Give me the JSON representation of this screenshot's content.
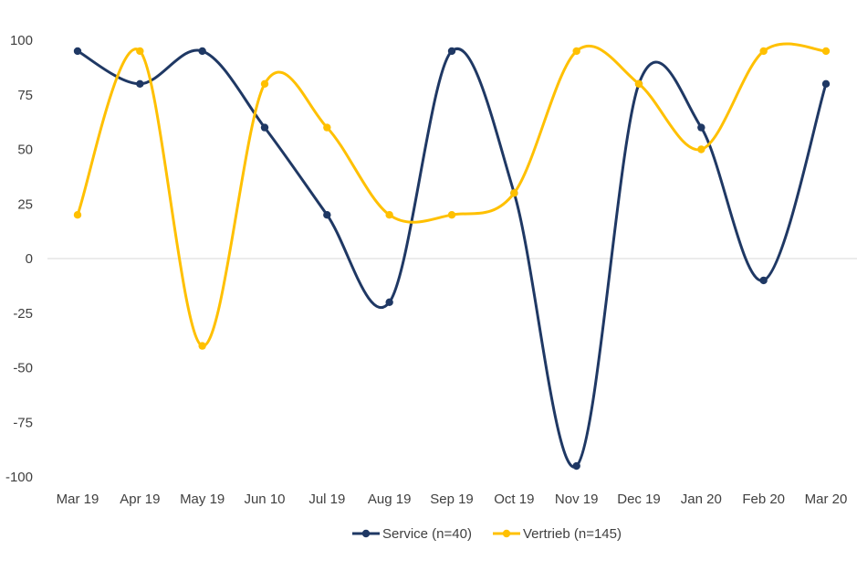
{
  "chart_data": {
    "type": "line",
    "smooth": true,
    "title": "",
    "xlabel": "",
    "ylabel": "",
    "categories": [
      "Mar 19",
      "Apr 19",
      "May 19",
      "Jun 10",
      "Jul 19",
      "Aug 19",
      "Sep 19",
      "Oct 19",
      "Nov 19",
      "Dec 19",
      "Jan 20",
      "Feb 20",
      "Mar 20"
    ],
    "ylim": [
      -100,
      100
    ],
    "yticks": [
      100,
      75,
      50,
      25,
      0,
      -25,
      -50,
      -75,
      -100
    ],
    "zero_line": true,
    "grid": false,
    "legend_position": "bottom",
    "series": [
      {
        "name": "Service (n=40)",
        "color": "#1F3864",
        "values": [
          95,
          80,
          95,
          60,
          20,
          -20,
          95,
          30,
          -95,
          80,
          60,
          -10,
          80
        ]
      },
      {
        "name": "Vertrieb (n=145)",
        "color": "#FFC000",
        "values": [
          20,
          95,
          -40,
          80,
          60,
          20,
          20,
          30,
          95,
          80,
          50,
          95,
          95
        ]
      }
    ]
  }
}
